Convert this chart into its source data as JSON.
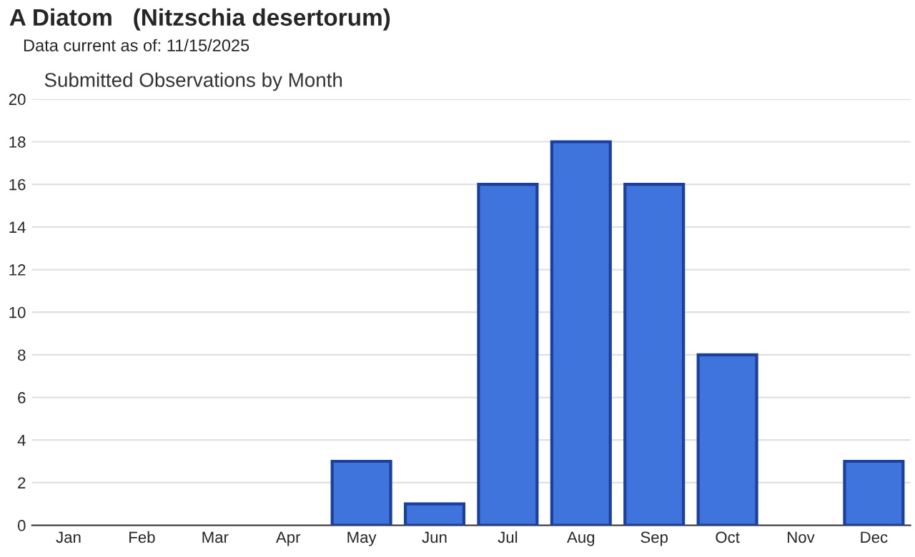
{
  "chart_data": {
    "type": "bar",
    "title": "A Diatom   (Nitzschia desertorum)",
    "subtitle": "Data current as of: 11/15/2025",
    "annotations": [
      "Submitted Observations by Month"
    ],
    "categories": [
      "Jan",
      "Feb",
      "Mar",
      "Apr",
      "May",
      "Jun",
      "Jul",
      "Aug",
      "Sep",
      "Oct",
      "Nov",
      "Dec"
    ],
    "values": [
      0,
      0,
      0,
      0,
      3,
      1,
      16,
      18,
      16,
      8,
      0,
      3
    ],
    "color": "#3f74dc",
    "ylim": [
      0,
      20
    ],
    "yticks": [
      0,
      2,
      4,
      6,
      8,
      10,
      12,
      14,
      16,
      18,
      20
    ],
    "grid": "y"
  }
}
